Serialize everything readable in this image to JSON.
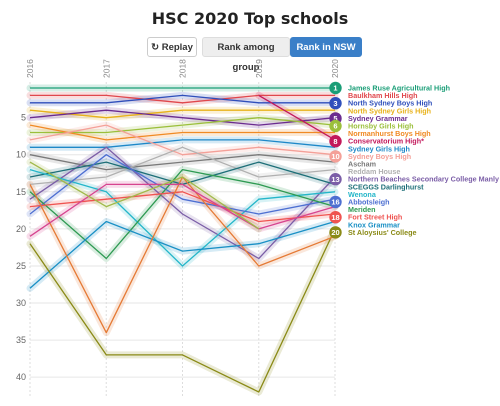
{
  "header": {
    "title": "HSC 2020 Top schools"
  },
  "controls": {
    "replay_label": "Replay",
    "replay_icon": "replay-icon",
    "rank_group_label": "Rank among group",
    "rank_nsw_label": "Rank in NSW",
    "active_color": "#3a7fc8"
  },
  "chart_data": {
    "type": "line",
    "title": "HSC 2020 Top schools",
    "xlabel": "",
    "ylabel": "",
    "x": [
      "2016",
      "2017",
      "2018",
      "2019",
      "2020"
    ],
    "ylim": [
      1,
      42
    ],
    "y_reversed": true,
    "yticks": [
      5,
      10,
      15,
      20,
      25,
      30,
      35,
      40
    ],
    "grid": true,
    "series": [
      {
        "name": "James Ruse Agricultural High",
        "rank": 1,
        "badge": true,
        "color": "#1a9e77",
        "values": [
          1,
          1,
          1,
          1,
          1
        ]
      },
      {
        "name": "Baulkham Hills High",
        "rank": 2,
        "badge": false,
        "color": "#e0474c",
        "values": [
          2,
          2,
          3,
          2,
          2
        ]
      },
      {
        "name": "North Sydney Boys High",
        "rank": 3,
        "badge": true,
        "color": "#2f4fbb",
        "values": [
          3,
          3,
          2,
          3,
          3
        ]
      },
      {
        "name": "North Sydney Girls High",
        "rank": 4,
        "badge": false,
        "color": "#e8b21a",
        "values": [
          4,
          5,
          4,
          4,
          4
        ]
      },
      {
        "name": "Sydney Grammar",
        "rank": 5,
        "badge": true,
        "color": "#6b2c8f",
        "values": [
          5,
          4,
          5,
          6,
          5
        ]
      },
      {
        "name": "Hornsby Girls High",
        "rank": 6,
        "badge": true,
        "color": "#9bbf3b",
        "values": [
          7,
          7,
          6,
          5,
          6
        ]
      },
      {
        "name": "Normanhurst Boys High",
        "rank": 7,
        "badge": false,
        "color": "#f08a24",
        "values": [
          6,
          8,
          7,
          7,
          7
        ]
      },
      {
        "name": "Conservatorium High*",
        "rank": 8,
        "badge": true,
        "color": "#c2185b",
        "values": [
          null,
          null,
          null,
          2,
          8
        ]
      },
      {
        "name": "Sydney Girls High",
        "rank": 9,
        "badge": false,
        "color": "#1e88c8",
        "values": [
          9,
          9,
          8,
          8,
          9
        ]
      },
      {
        "name": "Sydney Boys High",
        "rank": 10,
        "badge": true,
        "color": "#f4a098",
        "values": [
          8,
          6,
          10,
          9,
          10
        ]
      },
      {
        "name": "Ascham",
        "rank": 11,
        "badge": false,
        "color": "#7a7a7a",
        "values": [
          10,
          12,
          11,
          10,
          11
        ]
      },
      {
        "name": "Reddam House",
        "rank": 12,
        "badge": false,
        "color": "#b0b0b0",
        "values": [
          14,
          13,
          9,
          13,
          12
        ]
      },
      {
        "name": "Northern Beaches Secondary College Manly",
        "rank": 13,
        "badge": true,
        "color": "#7b5ea7",
        "values": [
          16,
          9,
          18,
          24,
          13
        ]
      },
      {
        "name": "SCEGGS Darlinghurst",
        "rank": 14,
        "badge": false,
        "color": "#1d6f78",
        "values": [
          13,
          11,
          14,
          11,
          14
        ]
      },
      {
        "name": "Wenona",
        "rank": 15,
        "badge": false,
        "color": "#25b6c9",
        "values": [
          12,
          15,
          25,
          16,
          15
        ]
      },
      {
        "name": "Abbotsleigh",
        "rank": 16,
        "badge": true,
        "color": "#4d6fd1",
        "values": [
          18,
          10,
          16,
          18,
          16
        ]
      },
      {
        "name": "Meriden",
        "rank": 17,
        "badge": false,
        "color": "#2e9a52",
        "values": [
          15,
          24,
          12,
          14,
          17
        ]
      },
      {
        "name": "Fort Street High",
        "rank": 18,
        "badge": true,
        "color": "#ef5350",
        "values": [
          17,
          16,
          15,
          19,
          18
        ]
      },
      {
        "name": "Knox Grammar",
        "rank": 19,
        "badge": false,
        "color": "#1a90c5",
        "values": [
          28,
          19,
          23,
          22,
          19
        ]
      },
      {
        "name": "St Aloysius' College",
        "rank": 20,
        "badge": true,
        "color": "#8a8a16",
        "values": [
          22,
          37,
          37,
          42,
          20
        ]
      },
      {
        "name": "",
        "rank": null,
        "badge": false,
        "color": "#e57a35",
        "values": [
          14,
          34,
          13,
          25,
          21
        ]
      },
      {
        "name": "",
        "rank": null,
        "badge": false,
        "color": "#d6448f",
        "values": [
          21,
          14,
          14,
          20,
          17
        ]
      },
      {
        "name": "",
        "rank": null,
        "badge": false,
        "color": "#a1b94a",
        "values": [
          11,
          17,
          13,
          20,
          null
        ]
      }
    ]
  }
}
